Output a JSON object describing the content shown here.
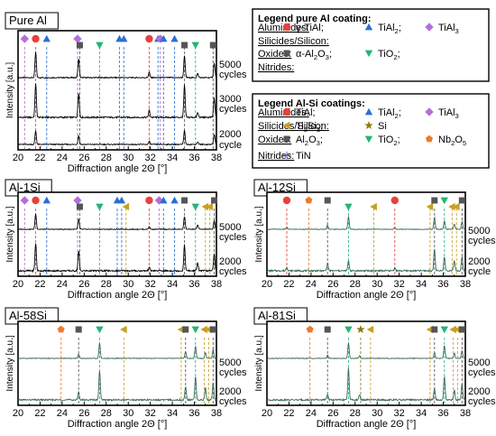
{
  "colors": {
    "red": "#e8403a",
    "blue": "#2a6fd6",
    "purple": "#b36fd8",
    "gray": "#555555",
    "green": "#22b573",
    "olive": "#c8a020",
    "orange": "#f07a2a",
    "dark_olive": "#8a7a10",
    "tin_blue": "#6a6fd0",
    "trace": "#000000",
    "trace_light": "#7fa89a"
  },
  "legend_pure": {
    "title": "Legend pure Al coating:",
    "rows": [
      {
        "category": "Aluminides:",
        "items": [
          {
            "marker": "circle",
            "color": "#e8403a",
            "label": "γ-TiAl;"
          },
          {
            "marker": "triangle-up",
            "color": "#2a6fd6",
            "label": "TiAl2;"
          },
          {
            "marker": "diamond",
            "color": "#b36fd8",
            "label": "TiAl3"
          }
        ]
      },
      {
        "category": "Silicides/Silicon:",
        "items": []
      },
      {
        "category": "Oxides:",
        "items": [
          {
            "marker": "square",
            "color": "#555555",
            "label": "α-Al2O3;"
          },
          {
            "marker": "triangle-down",
            "color": "#22b573",
            "label": "TiO2;"
          }
        ]
      },
      {
        "category": "Nitrides:",
        "items": []
      }
    ]
  },
  "legend_alsi": {
    "title": "Legend Al-Si coatings:",
    "rows": [
      {
        "category": "Aluminides:",
        "items": [
          {
            "marker": "circle",
            "color": "#e8403a",
            "label": "TiAl;"
          },
          {
            "marker": "triangle-up",
            "color": "#2a6fd6",
            "label": "TiAl2;"
          },
          {
            "marker": "diamond",
            "color": "#b36fd8",
            "label": "TiAl3"
          }
        ]
      },
      {
        "category": "Silicides/Silicon:",
        "items": [
          {
            "marker": "triangle-left",
            "color": "#c8a020",
            "label": "Ti5Si3;"
          },
          {
            "marker": "star",
            "color": "#8a7a10",
            "label": "Si"
          }
        ]
      },
      {
        "category": "Oxides:",
        "items": [
          {
            "marker": "square",
            "color": "#555555",
            "label": "Al2O3;"
          },
          {
            "marker": "triangle-down",
            "color": "#22b573",
            "label": "TiO2;"
          },
          {
            "marker": "pentagon",
            "color": "#f07a2a",
            "label": "Nb2O5"
          }
        ]
      },
      {
        "category": "Nitrides:",
        "items": [
          {
            "marker": "plus",
            "color": "#6a6fd0",
            "label": "TiN"
          }
        ]
      }
    ]
  },
  "chart_data": [
    {
      "id": "pure-al",
      "type": "line",
      "title": "Pure Al",
      "xlabel": "Diffraction angle 2Θ [°]",
      "ylabel": "Intensity [a.u.]",
      "xlim": [
        20,
        38
      ],
      "xticks": [
        20,
        22,
        24,
        26,
        28,
        30,
        32,
        34,
        36,
        38
      ],
      "series": [
        {
          "name": "5000 cycles",
          "label_lines": [
            "5000",
            "cycles"
          ]
        },
        {
          "name": "3000 cycles",
          "label_lines": [
            "3000",
            "cycles"
          ]
        },
        {
          "name": "2000 cycle",
          "label_lines": [
            "2000",
            "cycle"
          ]
        }
      ],
      "peaks": [
        {
          "x": 21.6,
          "h": [
            0.95,
            0.9,
            0.55
          ]
        },
        {
          "x": 25.5,
          "h": [
            0.7,
            0.65,
            0.35
          ]
        },
        {
          "x": 31.9,
          "h": [
            0.2,
            0.18,
            0.12
          ]
        },
        {
          "x": 35.1,
          "h": [
            0.8,
            0.85,
            0.55
          ]
        },
        {
          "x": 36.3,
          "h": [
            0.15,
            0.12,
            0.1
          ]
        },
        {
          "x": 37.8,
          "h": [
            0.55,
            0.5,
            0.4
          ]
        }
      ],
      "markers": [
        {
          "x": 20.6,
          "marker": "diamond",
          "color": "#b36fd8"
        },
        {
          "x": 21.6,
          "marker": "circle",
          "color": "#e8403a"
        },
        {
          "x": 22.6,
          "marker": "triangle-up",
          "color": "#2a6fd6"
        },
        {
          "x": 25.4,
          "marker": "diamond",
          "color": "#b36fd8",
          "tier": 0
        },
        {
          "x": 25.6,
          "marker": "square",
          "color": "#555555",
          "tier": 1
        },
        {
          "x": 27.4,
          "marker": "triangle-down",
          "color": "#22b573",
          "tier": 1
        },
        {
          "x": 29.2,
          "marker": "triangle-up",
          "color": "#2a6fd6"
        },
        {
          "x": 29.6,
          "marker": "triangle-up",
          "color": "#2a6fd6"
        },
        {
          "x": 31.9,
          "marker": "circle",
          "color": "#e8403a"
        },
        {
          "x": 32.7,
          "marker": "triangle-up",
          "color": "#2a6fd6"
        },
        {
          "x": 32.9,
          "marker": "diamond",
          "color": "#b36fd8"
        },
        {
          "x": 33.2,
          "marker": "triangle-up",
          "color": "#2a6fd6"
        },
        {
          "x": 34.2,
          "marker": "triangle-up",
          "color": "#2a6fd6"
        },
        {
          "x": 35.1,
          "marker": "square",
          "color": "#555555",
          "tier": 1
        },
        {
          "x": 36.1,
          "marker": "triangle-down",
          "color": "#22b573",
          "tier": 1
        },
        {
          "x": 37.7,
          "marker": "square",
          "color": "#555555",
          "tier": 1
        }
      ]
    },
    {
      "id": "al-1si",
      "type": "line",
      "title": "Al-1Si",
      "xlabel": "Diffraction angle 2Θ [°]",
      "ylabel": "Intensity [a.u.]",
      "xlim": [
        20,
        38
      ],
      "xticks": [
        20,
        22,
        24,
        26,
        28,
        30,
        32,
        34,
        36,
        38
      ],
      "series": [
        {
          "name": "5000 cycles",
          "label_lines": [
            "5000",
            "cycles"
          ]
        },
        {
          "name": "2000 cycles",
          "label_lines": [
            "2000",
            "cycles"
          ]
        }
      ],
      "peaks": [
        {
          "x": 21.6,
          "h": [
            0.9,
            0.7
          ]
        },
        {
          "x": 25.5,
          "h": [
            0.6,
            0.5
          ]
        },
        {
          "x": 31.9,
          "h": [
            0.15,
            0.1
          ]
        },
        {
          "x": 35.1,
          "h": [
            0.75,
            0.65
          ]
        },
        {
          "x": 36.3,
          "h": [
            0.25,
            0.2
          ]
        },
        {
          "x": 37.8,
          "h": [
            0.5,
            0.45
          ]
        }
      ],
      "markers": [
        {
          "x": 20.6,
          "marker": "diamond",
          "color": "#b36fd8"
        },
        {
          "x": 21.6,
          "marker": "circle",
          "color": "#e8403a"
        },
        {
          "x": 22.6,
          "marker": "triangle-up",
          "color": "#2a6fd6"
        },
        {
          "x": 25.4,
          "marker": "diamond",
          "color": "#b36fd8",
          "tier": 0
        },
        {
          "x": 25.6,
          "marker": "square",
          "color": "#555555",
          "tier": 1
        },
        {
          "x": 27.4,
          "marker": "triangle-down",
          "color": "#22b573",
          "tier": 1
        },
        {
          "x": 29.0,
          "marker": "triangle-up",
          "color": "#2a6fd6"
        },
        {
          "x": 29.4,
          "marker": "triangle-up",
          "color": "#2a6fd6"
        },
        {
          "x": 29.8,
          "marker": "triangle-left",
          "color": "#c8a020",
          "tier": 1
        },
        {
          "x": 31.9,
          "marker": "circle",
          "color": "#e8403a"
        },
        {
          "x": 32.8,
          "marker": "diamond",
          "color": "#b36fd8"
        },
        {
          "x": 33.2,
          "marker": "triangle-up",
          "color": "#2a6fd6"
        },
        {
          "x": 34.2,
          "marker": "triangle-up",
          "color": "#2a6fd6"
        },
        {
          "x": 35.1,
          "marker": "square",
          "color": "#555555",
          "tier": 0
        },
        {
          "x": 36.1,
          "marker": "triangle-down",
          "color": "#22b573",
          "tier": 1
        },
        {
          "x": 37.0,
          "marker": "triangle-left",
          "color": "#c8a020",
          "tier": 1
        },
        {
          "x": 37.4,
          "marker": "triangle-left",
          "color": "#c8a020",
          "tier": 1
        },
        {
          "x": 37.8,
          "marker": "square",
          "color": "#555555",
          "tier": 0
        }
      ]
    },
    {
      "id": "al-12si",
      "type": "line",
      "title": "Al-12Si",
      "xlabel": "Diffraction angle 2Θ [°]",
      "ylabel": "Intensity [a.u.]",
      "xlim": [
        20,
        38
      ],
      "xticks": [
        20,
        22,
        24,
        26,
        28,
        30,
        32,
        34,
        36,
        38
      ],
      "series": [
        {
          "name": "5000 cycles",
          "label_lines": [
            "5000",
            "cycles"
          ]
        },
        {
          "name": "2000 cycle",
          "label_lines": [
            "2000",
            "cycle"
          ]
        }
      ],
      "peaks": [
        {
          "x": 21.8,
          "h": [
            0.12,
            0.1
          ]
        },
        {
          "x": 25.5,
          "h": [
            0.25,
            0.2
          ]
        },
        {
          "x": 27.4,
          "h": [
            0.75,
            0.25
          ]
        },
        {
          "x": 31.6,
          "h": [
            0.1,
            0.08
          ]
        },
        {
          "x": 35.2,
          "h": [
            0.7,
            0.55
          ]
        },
        {
          "x": 36.1,
          "h": [
            0.5,
            0.35
          ]
        },
        {
          "x": 37.0,
          "h": [
            0.3,
            0.25
          ]
        },
        {
          "x": 37.7,
          "h": [
            0.45,
            0.35
          ]
        }
      ],
      "markers": [
        {
          "x": 21.8,
          "marker": "circle",
          "color": "#e8403a"
        },
        {
          "x": 23.8,
          "marker": "pentagon",
          "color": "#f07a2a"
        },
        {
          "x": 25.5,
          "marker": "square",
          "color": "#555555"
        },
        {
          "x": 27.4,
          "marker": "triangle-down",
          "color": "#22b573",
          "tier": 1
        },
        {
          "x": 29.7,
          "marker": "triangle-left",
          "color": "#c8a020",
          "tier": 1
        },
        {
          "x": 31.6,
          "marker": "circle",
          "color": "#e8403a"
        },
        {
          "x": 34.8,
          "marker": "triangle-left",
          "color": "#c8a020",
          "tier": 1
        },
        {
          "x": 35.2,
          "marker": "square",
          "color": "#555555",
          "tier": 0
        },
        {
          "x": 36.1,
          "marker": "triangle-down",
          "color": "#22b573",
          "tier": 0
        },
        {
          "x": 36.8,
          "marker": "triangle-left",
          "color": "#c8a020",
          "tier": 1
        },
        {
          "x": 37.2,
          "marker": "triangle-left",
          "color": "#c8a020",
          "tier": 1
        },
        {
          "x": 37.7,
          "marker": "square",
          "color": "#555555",
          "tier": 0
        }
      ]
    },
    {
      "id": "al-58si",
      "type": "line",
      "title": "Al-58Si",
      "xlabel": "Diffraction angle 2Θ [°]",
      "ylabel": "Intensity [a.u.]",
      "xlim": [
        20,
        38
      ],
      "xticks": [
        20,
        22,
        24,
        26,
        28,
        30,
        32,
        34,
        36,
        38
      ],
      "series": [
        {
          "name": "5000 cycles",
          "label_lines": [
            "5000",
            "cycles"
          ]
        },
        {
          "name": "2000 cycles",
          "label_lines": [
            "2000",
            "cycles"
          ]
        }
      ],
      "peaks": [
        {
          "x": 25.5,
          "h": [
            0.25,
            0.2
          ]
        },
        {
          "x": 27.4,
          "h": [
            0.9,
            0.75
          ]
        },
        {
          "x": 35.2,
          "h": [
            0.4,
            0.35
          ]
        },
        {
          "x": 36.1,
          "h": [
            0.7,
            0.6
          ]
        },
        {
          "x": 37.0,
          "h": [
            0.35,
            0.3
          ]
        },
        {
          "x": 37.7,
          "h": [
            0.5,
            0.45
          ]
        }
      ],
      "markers": [
        {
          "x": 23.9,
          "marker": "pentagon",
          "color": "#f07a2a"
        },
        {
          "x": 25.5,
          "marker": "square",
          "color": "#555555"
        },
        {
          "x": 27.4,
          "marker": "triangle-down",
          "color": "#22b573"
        },
        {
          "x": 29.6,
          "marker": "triangle-left",
          "color": "#c8a020"
        },
        {
          "x": 34.8,
          "marker": "triangle-left",
          "color": "#c8a020"
        },
        {
          "x": 35.2,
          "marker": "square",
          "color": "#555555"
        },
        {
          "x": 36.1,
          "marker": "triangle-down",
          "color": "#22b573"
        },
        {
          "x": 36.9,
          "marker": "triangle-left",
          "color": "#c8a020"
        },
        {
          "x": 37.3,
          "marker": "triangle-left",
          "color": "#c8a020"
        },
        {
          "x": 37.7,
          "marker": "square",
          "color": "#555555"
        }
      ]
    },
    {
      "id": "al-81si",
      "type": "line",
      "title": "Al-81Si",
      "xlabel": "Diffraction angle 2Θ [°]",
      "ylabel": "Intensity [a.u.]",
      "xlim": [
        20,
        38
      ],
      "xticks": [
        20,
        22,
        24,
        26,
        28,
        30,
        32,
        34,
        36,
        38
      ],
      "series": [
        {
          "name": "5000 cycles",
          "label_lines": [
            "5000",
            "cycles"
          ]
        },
        {
          "name": "2000 cycles",
          "label_lines": [
            "2000",
            "cycles"
          ]
        }
      ],
      "peaks": [
        {
          "x": 25.5,
          "h": [
            0.2,
            0.15
          ]
        },
        {
          "x": 27.4,
          "h": [
            0.9,
            0.8
          ]
        },
        {
          "x": 28.4,
          "h": [
            0.15,
            0.12
          ]
        },
        {
          "x": 35.2,
          "h": [
            0.35,
            0.3
          ]
        },
        {
          "x": 36.1,
          "h": [
            0.75,
            0.6
          ]
        },
        {
          "x": 37.0,
          "h": [
            0.3,
            0.25
          ]
        },
        {
          "x": 37.7,
          "h": [
            0.45,
            0.4
          ]
        }
      ],
      "markers": [
        {
          "x": 23.9,
          "marker": "pentagon",
          "color": "#f07a2a"
        },
        {
          "x": 25.5,
          "marker": "square",
          "color": "#555555"
        },
        {
          "x": 27.4,
          "marker": "triangle-down",
          "color": "#22b573"
        },
        {
          "x": 28.5,
          "marker": "star",
          "color": "#8a7a10"
        },
        {
          "x": 29.4,
          "marker": "triangle-left",
          "color": "#c8a020"
        },
        {
          "x": 34.8,
          "marker": "triangle-left",
          "color": "#c8a020"
        },
        {
          "x": 35.2,
          "marker": "square",
          "color": "#555555"
        },
        {
          "x": 36.1,
          "marker": "triangle-down",
          "color": "#22b573"
        },
        {
          "x": 36.9,
          "marker": "triangle-left",
          "color": "#c8a020"
        },
        {
          "x": 37.3,
          "marker": "triangle-left",
          "color": "#c8a020"
        },
        {
          "x": 37.7,
          "marker": "square",
          "color": "#555555"
        }
      ]
    }
  ]
}
